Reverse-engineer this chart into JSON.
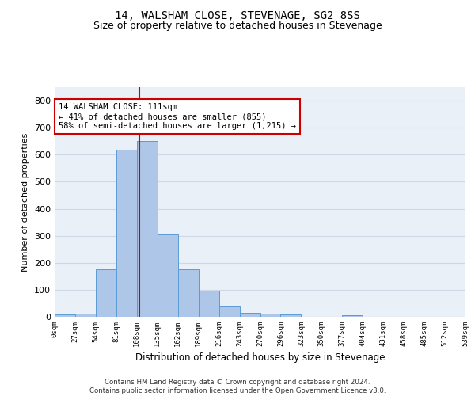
{
  "title": "14, WALSHAM CLOSE, STEVENAGE, SG2 8SS",
  "subtitle": "Size of property relative to detached houses in Stevenage",
  "xlabel": "Distribution of detached houses by size in Stevenage",
  "ylabel": "Number of detached properties",
  "bin_labels": [
    "0sqm",
    "27sqm",
    "54sqm",
    "81sqm",
    "108sqm",
    "135sqm",
    "162sqm",
    "189sqm",
    "216sqm",
    "243sqm",
    "270sqm",
    "296sqm",
    "323sqm",
    "350sqm",
    "377sqm",
    "404sqm",
    "431sqm",
    "458sqm",
    "485sqm",
    "512sqm",
    "539sqm"
  ],
  "bar_values": [
    8,
    13,
    175,
    618,
    650,
    305,
    175,
    97,
    40,
    15,
    12,
    9,
    0,
    0,
    7,
    0,
    0,
    0,
    0,
    0
  ],
  "bar_color": "#aec6e8",
  "bar_edge_color": "#5b9bd5",
  "vline_x": 111.0,
  "annotation_text": "14 WALSHAM CLOSE: 111sqm\n← 41% of detached houses are smaller (855)\n58% of semi-detached houses are larger (1,215) →",
  "annotation_box_color": "#ffffff",
  "annotation_box_edge": "#cc0000",
  "vline_color": "#cc0000",
  "grid_color": "#d0d8e8",
  "background_color": "#eaf0f8",
  "footer_text": "Contains HM Land Registry data © Crown copyright and database right 2024.\nContains public sector information licensed under the Open Government Licence v3.0.",
  "ylim": [
    0,
    850
  ],
  "yticks": [
    0,
    100,
    200,
    300,
    400,
    500,
    600,
    700,
    800
  ],
  "bin_width": 27,
  "title_fontsize": 10,
  "subtitle_fontsize": 9
}
